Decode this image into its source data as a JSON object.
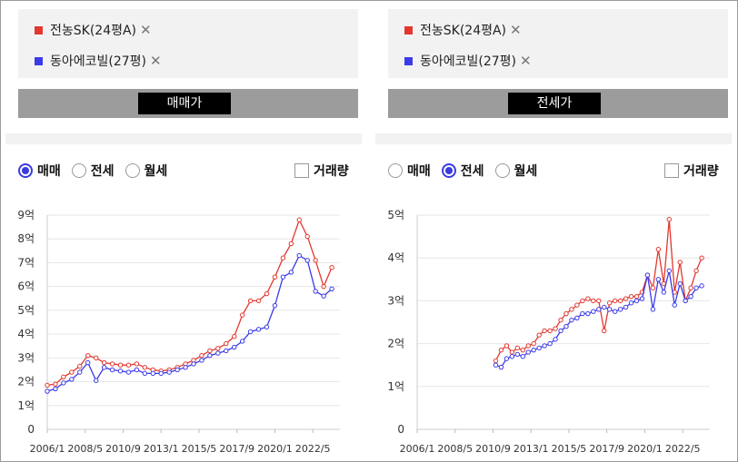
{
  "panels": [
    {
      "legend": [
        {
          "label": "전농SK(24평A)",
          "color": "#e2382f"
        },
        {
          "label": "동아에코빌(27평)",
          "color": "#3b3be8"
        }
      ],
      "close_icon": "close-icon",
      "button_label": "매매가",
      "radio_options": [
        "매매",
        "전세",
        "월세"
      ],
      "selected": "매매",
      "checkbox_label": "거래량"
    },
    {
      "legend": [
        {
          "label": "전농SK(24평A)",
          "color": "#e2382f"
        },
        {
          "label": "동아에코빌(27평)",
          "color": "#3b3be8"
        }
      ],
      "close_icon": "close-icon",
      "button_label": "전세가",
      "radio_options": [
        "매매",
        "전세",
        "월세"
      ],
      "selected": "전세",
      "checkbox_label": "거래량"
    }
  ],
  "chart_data": [
    {
      "type": "line",
      "x_tick_labels": [
        "2006/1",
        "2008/5",
        "2010/9",
        "2013/1",
        "2015/5",
        "2017/9",
        "2020/1",
        "2022/5"
      ],
      "y_tick_labels": [
        "0",
        "1억",
        "2억",
        "3억",
        "4억",
        "5억",
        "6억",
        "7억",
        "8억",
        "9억"
      ],
      "ylim": [
        0,
        9
      ],
      "xlim": [
        "2006-01",
        "2024-01"
      ],
      "grid": true,
      "series": [
        {
          "name": "전농SK(24평A)",
          "color": "#e2382f",
          "x": [
            "2006-01",
            "2006-07",
            "2007-01",
            "2007-07",
            "2008-01",
            "2008-07",
            "2009-01",
            "2009-07",
            "2010-01",
            "2010-07",
            "2011-01",
            "2011-07",
            "2012-01",
            "2012-07",
            "2013-01",
            "2013-07",
            "2014-01",
            "2014-07",
            "2015-01",
            "2015-07",
            "2016-01",
            "2016-07",
            "2017-01",
            "2017-07",
            "2018-01",
            "2018-07",
            "2019-01",
            "2019-07",
            "2020-01",
            "2020-07",
            "2021-01",
            "2021-07",
            "2022-01",
            "2022-07",
            "2023-01",
            "2023-07"
          ],
          "values": [
            1.85,
            1.9,
            2.2,
            2.4,
            2.65,
            3.1,
            3.0,
            2.8,
            2.75,
            2.7,
            2.7,
            2.75,
            2.6,
            2.5,
            2.45,
            2.5,
            2.6,
            2.75,
            2.9,
            3.1,
            3.3,
            3.4,
            3.6,
            3.9,
            4.8,
            5.4,
            5.4,
            5.7,
            6.4,
            7.2,
            7.8,
            8.8,
            8.1,
            7.1,
            6.0,
            6.8
          ]
        },
        {
          "name": "동아에코빌(27평)",
          "color": "#3b3be8",
          "x": [
            "2006-01",
            "2006-07",
            "2007-01",
            "2007-07",
            "2008-01",
            "2008-07",
            "2009-01",
            "2009-07",
            "2010-01",
            "2010-07",
            "2011-01",
            "2011-07",
            "2012-01",
            "2012-07",
            "2013-01",
            "2013-07",
            "2014-01",
            "2014-07",
            "2015-01",
            "2015-07",
            "2016-01",
            "2016-07",
            "2017-01",
            "2017-07",
            "2018-01",
            "2018-07",
            "2019-01",
            "2019-07",
            "2020-01",
            "2020-07",
            "2021-01",
            "2021-07",
            "2022-01",
            "2022-07",
            "2023-01",
            "2023-07"
          ],
          "values": [
            1.6,
            1.7,
            1.95,
            2.1,
            2.4,
            2.8,
            2.05,
            2.6,
            2.5,
            2.45,
            2.4,
            2.5,
            2.35,
            2.35,
            2.35,
            2.4,
            2.5,
            2.6,
            2.75,
            2.9,
            3.1,
            3.2,
            3.3,
            3.45,
            3.7,
            4.1,
            4.2,
            4.3,
            5.2,
            6.4,
            6.6,
            7.3,
            7.1,
            5.8,
            5.6,
            5.9
          ]
        }
      ]
    },
    {
      "type": "line",
      "x_tick_labels": [
        "2006/1",
        "2008/5",
        "2010/9",
        "2013/1",
        "2015/5",
        "2017/9",
        "2020/1",
        "2022/5"
      ],
      "y_tick_labels": [
        "0",
        "1억",
        "2억",
        "3억",
        "4억",
        "5억"
      ],
      "ylim": [
        0,
        5
      ],
      "xlim": [
        "2006-01",
        "2024-01"
      ],
      "grid": true,
      "series": [
        {
          "name": "전농SK(24평A)",
          "color": "#e2382f",
          "x": [
            "2010-11",
            "2011-03",
            "2011-07",
            "2011-11",
            "2012-03",
            "2012-07",
            "2012-11",
            "2013-03",
            "2013-07",
            "2013-11",
            "2014-03",
            "2014-07",
            "2014-11",
            "2015-03",
            "2015-07",
            "2015-11",
            "2016-03",
            "2016-07",
            "2016-11",
            "2017-03",
            "2017-07",
            "2017-11",
            "2018-03",
            "2018-07",
            "2018-11",
            "2019-03",
            "2019-07",
            "2019-11",
            "2020-03",
            "2020-07",
            "2020-11",
            "2021-03",
            "2021-07",
            "2021-11",
            "2022-03",
            "2022-07",
            "2022-11",
            "2023-03",
            "2023-07"
          ],
          "values": [
            1.6,
            1.85,
            1.95,
            1.8,
            1.9,
            1.85,
            1.95,
            2.0,
            2.2,
            2.3,
            2.3,
            2.35,
            2.55,
            2.7,
            2.8,
            2.9,
            3.0,
            3.05,
            3.0,
            3.0,
            2.3,
            2.95,
            3.0,
            3.0,
            3.05,
            3.1,
            3.1,
            3.2,
            3.6,
            3.3,
            4.2,
            3.4,
            4.9,
            3.2,
            3.9,
            3.0,
            3.3,
            3.7,
            4.0
          ]
        },
        {
          "name": "동아에코빌(27평)",
          "color": "#3b3be8",
          "x": [
            "2010-11",
            "2011-03",
            "2011-07",
            "2011-11",
            "2012-03",
            "2012-07",
            "2012-11",
            "2013-03",
            "2013-07",
            "2013-11",
            "2014-03",
            "2014-07",
            "2014-11",
            "2015-03",
            "2015-07",
            "2015-11",
            "2016-03",
            "2016-07",
            "2016-11",
            "2017-03",
            "2017-07",
            "2017-11",
            "2018-03",
            "2018-07",
            "2018-11",
            "2019-03",
            "2019-07",
            "2019-11",
            "2020-03",
            "2020-07",
            "2020-11",
            "2021-03",
            "2021-07",
            "2021-11",
            "2022-03",
            "2022-07",
            "2022-11",
            "2023-03",
            "2023-07"
          ],
          "values": [
            1.5,
            1.45,
            1.65,
            1.7,
            1.75,
            1.7,
            1.8,
            1.85,
            1.9,
            1.95,
            2.0,
            2.1,
            2.3,
            2.4,
            2.55,
            2.6,
            2.7,
            2.7,
            2.75,
            2.8,
            2.85,
            2.8,
            2.75,
            2.8,
            2.85,
            2.95,
            3.0,
            3.05,
            3.6,
            2.8,
            3.5,
            3.2,
            3.7,
            2.9,
            3.4,
            3.0,
            3.1,
            3.3,
            3.35
          ]
        }
      ]
    }
  ]
}
